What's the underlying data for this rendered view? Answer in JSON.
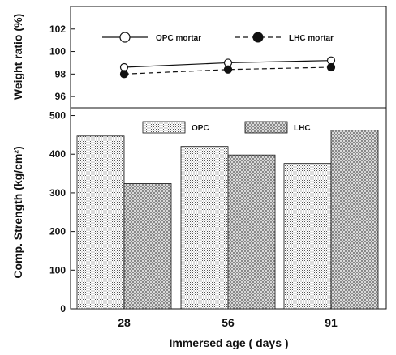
{
  "chart_data": [
    {
      "type": "line",
      "ylabel": "Weight ratio (%)",
      "ylim": [
        95,
        104
      ],
      "yticks": [
        96,
        98,
        100,
        102
      ],
      "categories": [
        "28",
        "56",
        "91"
      ],
      "grid": false,
      "legend_placement": "top",
      "series": [
        {
          "name": "OPC mortar",
          "values": [
            98.6,
            99.0,
            99.2
          ],
          "marker": "open-circle",
          "line": "solid"
        },
        {
          "name": "LHC mortar",
          "values": [
            98.0,
            98.4,
            98.6
          ],
          "marker": "filled-circle",
          "line": "dashed"
        }
      ]
    },
    {
      "type": "bar",
      "ylabel": "Comp. Strength (kg/cm²)",
      "xlabel": "Immersed age ( days )",
      "ylim": [
        0,
        520
      ],
      "yticks": [
        0,
        100,
        200,
        300,
        400,
        500
      ],
      "categories": [
        "28",
        "56",
        "91"
      ],
      "grid": false,
      "legend_placement": "top",
      "series": [
        {
          "name": "OPC",
          "values": [
            447,
            420,
            376
          ],
          "pattern": "fine-dots"
        },
        {
          "name": "LHC",
          "values": [
            324,
            398,
            462
          ],
          "pattern": "cross-hatch"
        }
      ]
    }
  ],
  "colors": {
    "axis": "#111111",
    "background": "#ffffff"
  }
}
